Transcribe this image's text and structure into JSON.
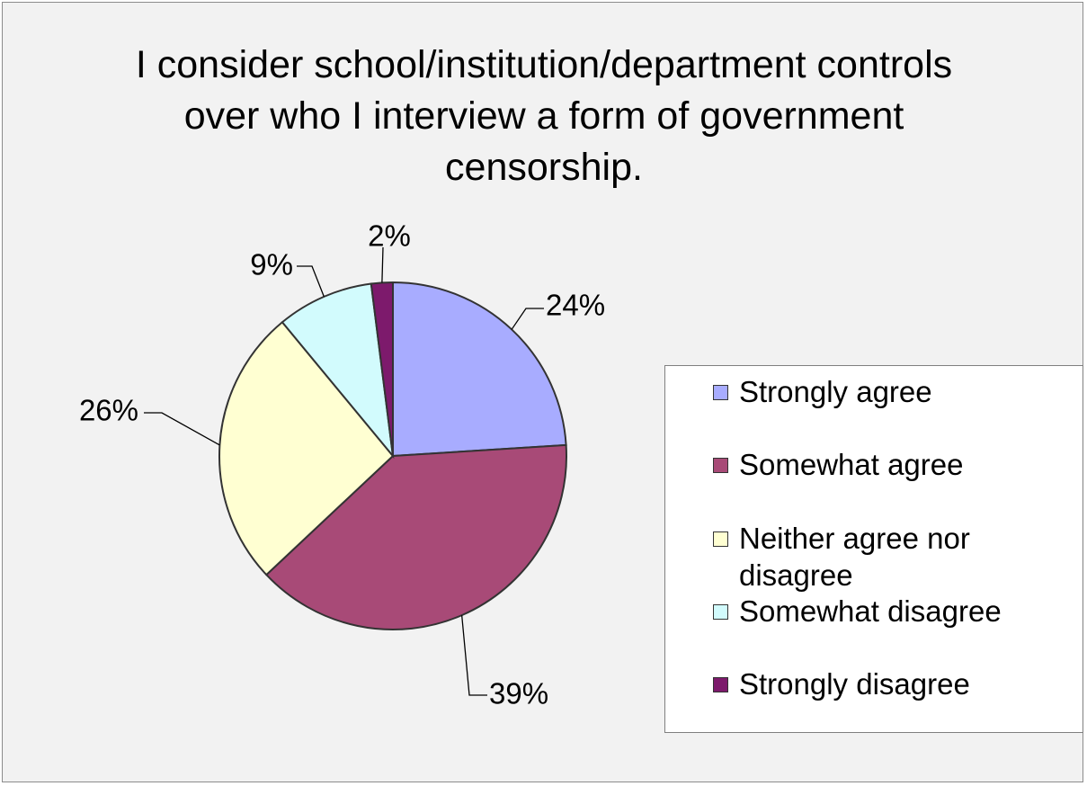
{
  "chart_data": {
    "type": "pie",
    "title": "I consider school/institution/department controls over who I interview a form of government censorship.",
    "categories": [
      "Strongly agree",
      "Somewhat agree",
      "Neither agree nor disagree",
      "Somewhat disagree",
      "Strongly disagree"
    ],
    "values": [
      24,
      39,
      26,
      9,
      2
    ],
    "data_labels": [
      "24%",
      "39%",
      "26%",
      "9%",
      "2%"
    ],
    "colors": [
      "#a8acff",
      "#a84a77",
      "#ffffd2",
      "#d2fbfd",
      "#7d1a6c"
    ],
    "legend_position": "right",
    "start_angle_deg": 0,
    "direction": "clockwise"
  }
}
